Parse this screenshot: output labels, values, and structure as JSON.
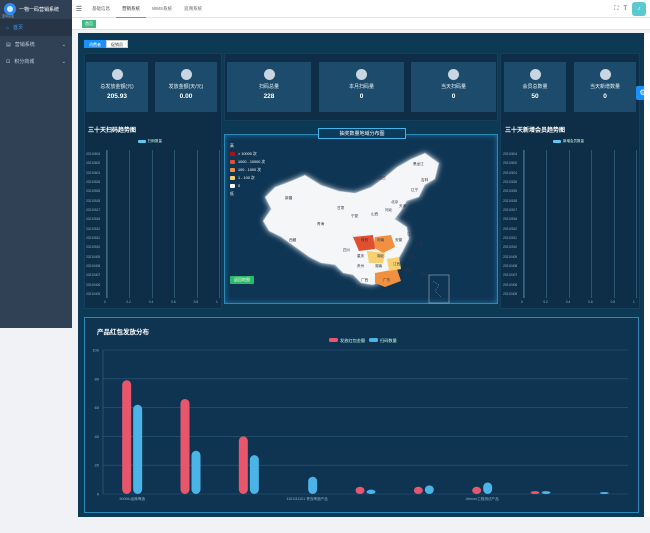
{
  "app": {
    "title": "一物一码营销系统",
    "logo_sub": "亚特蓝盈"
  },
  "sidebar": {
    "items": [
      {
        "label": "首页",
        "icon": "home-icon"
      },
      {
        "label": "营销系统",
        "icon": "doc-icon"
      },
      {
        "label": "积分商城",
        "icon": "cart-icon"
      }
    ]
  },
  "topmenu": [
    "基础信息",
    "营销系统",
    "WMS系统",
    "追溯系统"
  ],
  "tags": {
    "home": "首页"
  },
  "subtabs": [
    "消费者",
    "促销员"
  ],
  "stats": [
    {
      "label": "总发放金额(元)",
      "value": "205.93",
      "icon": "wallet-icon"
    },
    {
      "label": "发放金额(天/元)",
      "value": "0.00",
      "icon": "money-icon"
    },
    {
      "label": "扫码总量",
      "value": "228",
      "icon": "scan-icon"
    },
    {
      "label": "本月扫码量",
      "value": "0",
      "icon": "scan-icon"
    },
    {
      "label": "当天扫码量",
      "value": "0",
      "icon": "scan-icon"
    },
    {
      "label": "会员总数量",
      "value": "50",
      "icon": "user-icon"
    },
    {
      "label": "当天新增数量",
      "value": "0",
      "icon": "user-add-icon"
    }
  ],
  "left_chart": {
    "title": "三十天扫码趋势图",
    "legend": "扫码数量",
    "dates": [
      "20210604",
      "20210602",
      "20210601",
      "20210526",
      "20210525",
      "20210518",
      "20210517",
      "20210516",
      "20210512",
      "20210511",
      "20210510",
      "20210409",
      "20210408",
      "20210407",
      "20210406",
      "20210405"
    ],
    "ticks": [
      "0",
      "0.2",
      "0.4",
      "0.6",
      "0.8",
      "1"
    ]
  },
  "right_chart": {
    "title": "三十天新增会员趋势图",
    "legend": "新增会员数量",
    "dates": [
      "20210604",
      "20210602",
      "20210601",
      "20210526",
      "20210525",
      "20210518",
      "20210517",
      "20210516",
      "20210512",
      "20210511",
      "20210510",
      "20210409",
      "20210408",
      "20210407",
      "20210406",
      "20210405"
    ],
    "ticks": [
      "0",
      "0.2",
      "0.4",
      "0.6",
      "0.8",
      "1"
    ]
  },
  "map": {
    "title": "抽奖数量地域分布图",
    "legend_title": "高",
    "legend_low": "低",
    "legend": [
      {
        "label": "> 10000 次",
        "color": "#b01010"
      },
      {
        "label": "1000 - 10000 次",
        "color": "#e05030"
      },
      {
        "label": "100 - 1000 次",
        "color": "#f09040"
      },
      {
        "label": "1 - 100 次",
        "color": "#f8d070"
      },
      {
        "label": "0",
        "color": "#ffffff"
      }
    ],
    "button": "返回地图",
    "provinces": [
      "黑龙江",
      "吉林",
      "辽宁",
      "内蒙古",
      "北京",
      "天津",
      "河北",
      "山西",
      "山东",
      "宁夏",
      "甘肃",
      "新疆",
      "西藏",
      "青海",
      "四川",
      "重庆",
      "湖北",
      "河南",
      "安徽",
      "江苏",
      "上海",
      "浙江",
      "江西",
      "湖南",
      "贵州",
      "云南",
      "广西",
      "广东",
      "福建",
      "台湾",
      "陕西"
    ]
  },
  "chart_data": {
    "type": "bar",
    "title": "产品红包发放分布",
    "legend": [
      "发放红包金额",
      "扫码数量"
    ],
    "categories": [
      "500ML经典啤酒",
      "",
      "",
      "1101111101 青岛啤酒产品",
      "",
      "",
      "Jelmon工程测试产品",
      "",
      ""
    ],
    "ylim": [
      0,
      100
    ],
    "yticks": [
      "0",
      "20",
      "40",
      "60",
      "80",
      "100"
    ],
    "series": [
      {
        "name": "发放红包金额",
        "color": "#e8566c",
        "values": [
          79,
          66,
          40,
          0,
          5,
          5,
          5,
          2,
          0
        ]
      },
      {
        "name": "扫码数量",
        "color": "#4bb3e6",
        "values": [
          62,
          30,
          27,
          12,
          3,
          6,
          8,
          2,
          1
        ]
      }
    ]
  }
}
